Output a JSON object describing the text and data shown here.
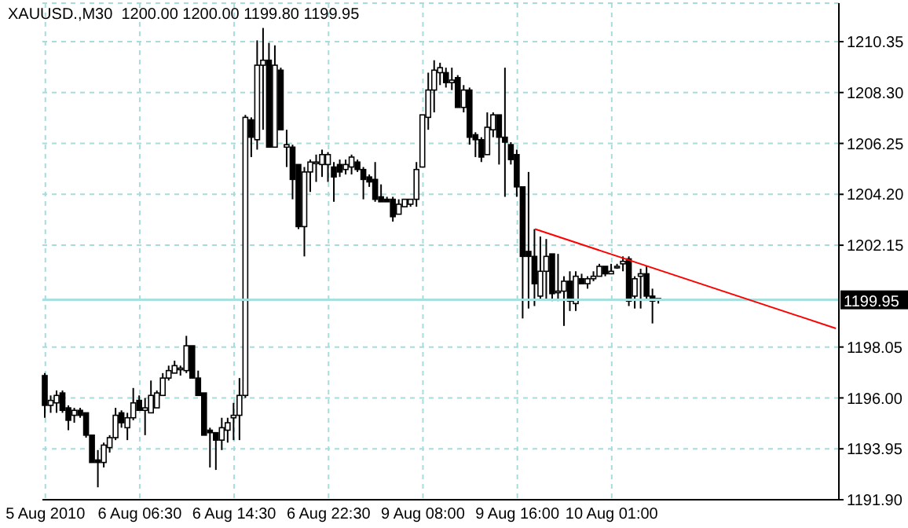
{
  "chart_data": {
    "type": "candlestick",
    "title": "XAUUSD.,M30  1200.00 1200.00 1199.80 1199.95",
    "categories": [
      "5 Aug 2010",
      null,
      null,
      null,
      null,
      null,
      null,
      null,
      null,
      null,
      null,
      null,
      null,
      null,
      null,
      null,
      "6 Aug 06:30",
      null,
      null,
      null,
      null,
      null,
      null,
      null,
      null,
      null,
      null,
      null,
      null,
      null,
      null,
      null,
      "6 Aug 14:30",
      null,
      null,
      null,
      null,
      null,
      null,
      null,
      null,
      null,
      null,
      null,
      null,
      null,
      null,
      null,
      "6 Aug 22:30",
      null,
      null,
      null,
      null,
      null,
      null,
      null,
      null,
      null,
      null,
      null,
      null,
      null,
      null,
      null,
      "9 Aug 08:00",
      null,
      null,
      null,
      null,
      null,
      null,
      null,
      null,
      null,
      null,
      null,
      null,
      null,
      null,
      null,
      "9 Aug 16:00",
      null,
      null,
      null,
      null,
      null,
      null,
      null,
      null,
      null,
      null,
      null,
      null,
      null,
      null,
      null,
      "10 Aug 01:00",
      null,
      null,
      null,
      null,
      null,
      null,
      null,
      null,
      null,
      null,
      null,
      null,
      null,
      null,
      null,
      null,
      null,
      null,
      null,
      null,
      null,
      null,
      null,
      null,
      null,
      null,
      null,
      null,
      null,
      null,
      null,
      null,
      null,
      null,
      null,
      null,
      null,
      null
    ],
    "ohlc": [
      [
        1196.9,
        1197.0,
        1195.2,
        1195.7
      ],
      [
        1195.7,
        1196.1,
        1195.4,
        1195.9
      ],
      [
        1195.8,
        1196.3,
        1195.4,
        1196.1
      ],
      [
        1196.2,
        1196.3,
        1195.4,
        1195.5
      ],
      [
        1195.6,
        1195.7,
        1194.7,
        1195.1
      ],
      [
        1195.3,
        1195.6,
        1195.0,
        1195.5
      ],
      [
        1195.5,
        1195.6,
        1195.2,
        1195.3
      ],
      [
        1195.4,
        1195.4,
        1194.4,
        1194.5
      ],
      [
        1194.5,
        1194.5,
        1193.4,
        1193.4
      ],
      [
        1193.5,
        1193.9,
        1192.4,
        1193.4
      ],
      [
        1193.4,
        1194.2,
        1193.2,
        1194.1
      ],
      [
        1194.0,
        1194.5,
        1193.8,
        1194.4
      ],
      [
        1194.4,
        1195.6,
        1194.3,
        1195.3
      ],
      [
        1195.4,
        1195.5,
        1194.8,
        1195.0
      ],
      [
        1194.8,
        1195.4,
        1194.3,
        1195.2
      ],
      [
        1195.2,
        1196.4,
        1195.1,
        1195.8
      ],
      [
        1195.9,
        1196.1,
        1195.5,
        1195.5
      ],
      [
        1195.5,
        1196.0,
        1194.5,
        1195.6
      ],
      [
        1195.4,
        1196.7,
        1195.4,
        1196.1
      ],
      [
        1195.6,
        1196.3,
        1195.6,
        1196.2
      ],
      [
        1196.1,
        1197.0,
        1196.1,
        1196.8
      ],
      [
        1196.8,
        1197.3,
        1196.7,
        1197.1
      ],
      [
        1197.0,
        1197.5,
        1197.0,
        1197.3
      ],
      [
        1197.2,
        1197.3,
        1196.9,
        1197.2
      ],
      [
        1197.1,
        1198.5,
        1197.0,
        1198.1
      ],
      [
        1198.1,
        1198.1,
        1196.8,
        1196.8
      ],
      [
        1196.8,
        1197.1,
        1196.1,
        1196.1
      ],
      [
        1196.2,
        1196.2,
        1194.5,
        1194.5
      ],
      [
        1194.7,
        1194.8,
        1193.2,
        1194.6
      ],
      [
        1194.6,
        1194.6,
        1193.1,
        1194.3
      ],
      [
        1194.3,
        1195.2,
        1193.9,
        1194.8
      ],
      [
        1194.7,
        1195.2,
        1194.2,
        1195.0
      ],
      [
        1195.2,
        1195.8,
        1194.3,
        1195.3
      ],
      [
        1195.3,
        1196.8,
        1194.3,
        1196.1
      ],
      [
        1196.1,
        1207.4,
        1196.0,
        1207.3
      ],
      [
        1207.2,
        1207.3,
        1205.7,
        1206.5
      ],
      [
        1206.4,
        1210.4,
        1206.0,
        1209.4
      ],
      [
        1209.4,
        1210.9,
        1206.8,
        1209.6
      ],
      [
        1209.6,
        1210.3,
        1206.1,
        1206.1
      ],
      [
        1206.1,
        1210.2,
        1206.1,
        1209.4
      ],
      [
        1209.2,
        1209.3,
        1206.8,
        1206.8
      ],
      [
        1206.1,
        1206.8,
        1205.3,
        1206.2
      ],
      [
        1206.1,
        1206.2,
        1204.0,
        1204.8
      ],
      [
        1205.4,
        1205.4,
        1202.8,
        1202.9
      ],
      [
        1202.9,
        1205.3,
        1201.7,
        1205.1
      ],
      [
        1205.1,
        1205.6,
        1204.3,
        1205.5
      ],
      [
        1205.5,
        1205.8,
        1204.7,
        1205.5
      ],
      [
        1205.4,
        1206.0,
        1204.9,
        1205.8
      ],
      [
        1205.4,
        1205.9,
        1204.7,
        1205.8
      ],
      [
        1205.3,
        1205.5,
        1203.9,
        1204.9
      ],
      [
        1205.4,
        1205.6,
        1204.9,
        1205.1
      ],
      [
        1205.2,
        1205.6,
        1205.0,
        1205.4
      ],
      [
        1205.3,
        1205.8,
        1205.0,
        1205.7
      ],
      [
        1205.5,
        1205.6,
        1205.1,
        1205.2
      ],
      [
        1205.2,
        1205.3,
        1204.0,
        1204.8
      ],
      [
        1204.9,
        1205.0,
        1204.5,
        1204.7
      ],
      [
        1204.8,
        1205.5,
        1203.9,
        1204.0
      ],
      [
        1204.1,
        1204.6,
        1203.9,
        1203.9
      ],
      [
        1204.0,
        1204.1,
        1203.9,
        1203.9
      ],
      [
        1204.0,
        1204.1,
        1203.1,
        1203.3
      ],
      [
        1203.4,
        1204.0,
        1203.4,
        1203.8
      ],
      [
        1203.7,
        1204.0,
        1203.7,
        1204.0
      ],
      [
        1203.8,
        1204.0,
        1203.7,
        1204.0
      ],
      [
        1204.0,
        1205.5,
        1203.7,
        1205.2
      ],
      [
        1205.3,
        1207.4,
        1205.3,
        1207.4
      ],
      [
        1207.3,
        1209.1,
        1206.8,
        1208.4
      ],
      [
        1208.4,
        1209.6,
        1207.5,
        1209.2
      ],
      [
        1209.1,
        1209.5,
        1208.6,
        1209.3
      ],
      [
        1209.1,
        1209.3,
        1208.5,
        1208.7
      ],
      [
        1208.7,
        1209.3,
        1208.4,
        1208.8
      ],
      [
        1208.9,
        1209.0,
        1207.7,
        1207.7
      ],
      [
        1207.7,
        1208.6,
        1207.5,
        1208.4
      ],
      [
        1208.4,
        1208.5,
        1206.2,
        1206.5
      ],
      [
        1206.6,
        1206.7,
        1205.7,
        1206.4
      ],
      [
        1206.4,
        1206.5,
        1205.5,
        1205.7
      ],
      [
        1205.8,
        1207.5,
        1205.8,
        1206.9
      ],
      [
        1206.8,
        1207.5,
        1206.5,
        1207.4
      ],
      [
        1207.4,
        1207.4,
        1205.4,
        1206.5
      ],
      [
        1206.5,
        1209.3,
        1204.1,
        1206.3
      ],
      [
        1206.2,
        1206.3,
        1205.4,
        1205.6
      ],
      [
        1205.8,
        1206.0,
        1204.1,
        1204.5
      ],
      [
        1204.5,
        1204.5,
        1199.2,
        1201.7
      ],
      [
        1201.9,
        1205.1,
        1199.6,
        1201.7
      ],
      [
        1201.7,
        1202.8,
        1199.7,
        1200.6
      ],
      [
        1200.1,
        1202.5,
        1200.0,
        1201.1
      ],
      [
        1201.1,
        1202.4,
        1200.0,
        1201.7
      ],
      [
        1201.8,
        1201.8,
        1199.9,
        1200.2
      ],
      [
        1200.3,
        1201.8,
        1199.9,
        1200.3
      ],
      [
        1200.3,
        1200.9,
        1198.9,
        1200.7
      ],
      [
        1200.7,
        1201.1,
        1199.5,
        1199.9
      ],
      [
        1199.8,
        1201.1,
        1199.5,
        1200.9
      ],
      [
        1200.8,
        1201.0,
        1200.6,
        1200.6
      ],
      [
        1200.6,
        1200.9,
        1200.4,
        1200.8
      ],
      [
        1200.8,
        1201.1,
        1200.7,
        1200.9
      ],
      [
        1200.9,
        1201.4,
        1200.9,
        1201.3
      ],
      [
        1201.3,
        1201.3,
        1200.9,
        1201.0
      ],
      [
        1201.0,
        1201.4,
        1201.0,
        1201.1
      ],
      [
        1201.3,
        1201.4,
        1201.2,
        1201.3
      ],
      [
        1201.4,
        1201.7,
        1201.1,
        1201.5
      ],
      [
        1201.6,
        1201.7,
        1199.7,
        1199.9
      ],
      [
        1200.1,
        1200.9,
        1199.6,
        1200.8
      ],
      [
        1200.9,
        1201.2,
        1199.6,
        1201.0
      ],
      [
        1201.0,
        1201.3,
        1200.0,
        1200.1
      ],
      [
        1200.1,
        1200.4,
        1199.0,
        1199.9
      ],
      [
        1200.0,
        1200.0,
        1199.8,
        1199.95
      ],
      null,
      null,
      null,
      null,
      null,
      null,
      null,
      null,
      null,
      null,
      null,
      null,
      null,
      null,
      null,
      null,
      null,
      null,
      null,
      null,
      null,
      null,
      null,
      null,
      null,
      null,
      null,
      null,
      null,
      null
    ],
    "series": [
      {
        "type": "line",
        "color": "#ff0000",
        "values": [
          null,
          null,
          null,
          null,
          null,
          null,
          null,
          null,
          null,
          null,
          null,
          null,
          null,
          null,
          null,
          null,
          null,
          null,
          null,
          null,
          null,
          null,
          null,
          null,
          null,
          null,
          null,
          null,
          null,
          null,
          null,
          null,
          null,
          null,
          null,
          null,
          null,
          null,
          null,
          null,
          null,
          null,
          null,
          null,
          null,
          null,
          null,
          null,
          null,
          null,
          null,
          null,
          null,
          null,
          null,
          null,
          null,
          null,
          null,
          null,
          null,
          null,
          null,
          null,
          null,
          null,
          null,
          null,
          null,
          null,
          null,
          null,
          null,
          null,
          null,
          null,
          null,
          null,
          null,
          null,
          null,
          null,
          null,
          1202.8,
          null,
          null,
          null,
          null,
          null,
          null,
          null,
          null,
          null,
          null,
          null,
          null,
          null,
          null,
          null,
          null,
          null,
          null,
          null,
          null,
          null,
          null,
          null,
          null,
          null,
          null,
          null,
          null,
          null,
          null,
          null,
          null,
          null,
          null,
          null,
          null,
          null,
          null,
          null,
          null,
          null,
          null,
          null,
          null,
          null,
          null,
          null,
          null,
          null,
          null,
          1198.8
        ]
      }
    ],
    "ylim": [
      1191.9,
      1211.9
    ],
    "yticks": [
      {
        "value": 1191.9,
        "label": "1191.90"
      },
      {
        "value": 1193.95,
        "label": "1193.95"
      },
      {
        "value": 1196,
        "label": "1196.00"
      },
      {
        "value": 1198.05,
        "label": "1198.05"
      },
      {
        "value": 1202.15,
        "label": "1202.15"
      },
      {
        "value": 1204.2,
        "label": "1204.20"
      },
      {
        "value": 1206.25,
        "label": "1206.25"
      },
      {
        "value": 1208.3,
        "label": "1208.30"
      },
      {
        "value": 1210.35,
        "label": "1210.35"
      }
    ],
    "grid": true,
    "ref_lines": [
      {
        "axis": "y",
        "value": 1199.95,
        "label": "1199.95",
        "color": "#a8e0e0"
      }
    ]
  }
}
